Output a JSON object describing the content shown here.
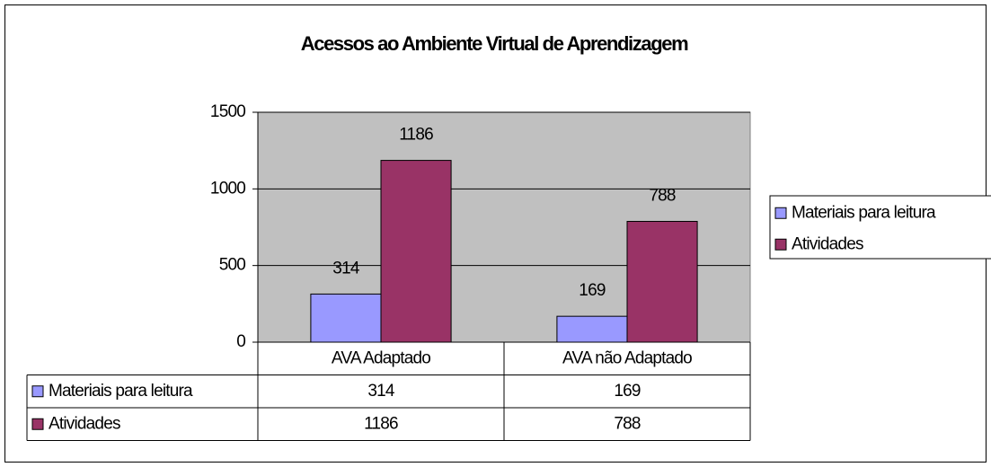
{
  "chart_data": {
    "type": "bar",
    "title": "Acessos ao Ambiente Virtual de Aprendizagem",
    "categories": [
      "AVA Adaptado",
      "AVA não Adaptado"
    ],
    "series": [
      {
        "name": "Materiais para leitura",
        "color": "#9999ff",
        "values": [
          314,
          169
        ]
      },
      {
        "name": "Atividades",
        "color": "#993366",
        "values": [
          1186,
          788
        ]
      }
    ],
    "ylim": [
      0,
      1500
    ],
    "yticks": [
      0,
      500,
      1000,
      1500
    ],
    "grid": true,
    "legend": "right",
    "data_table": true
  }
}
